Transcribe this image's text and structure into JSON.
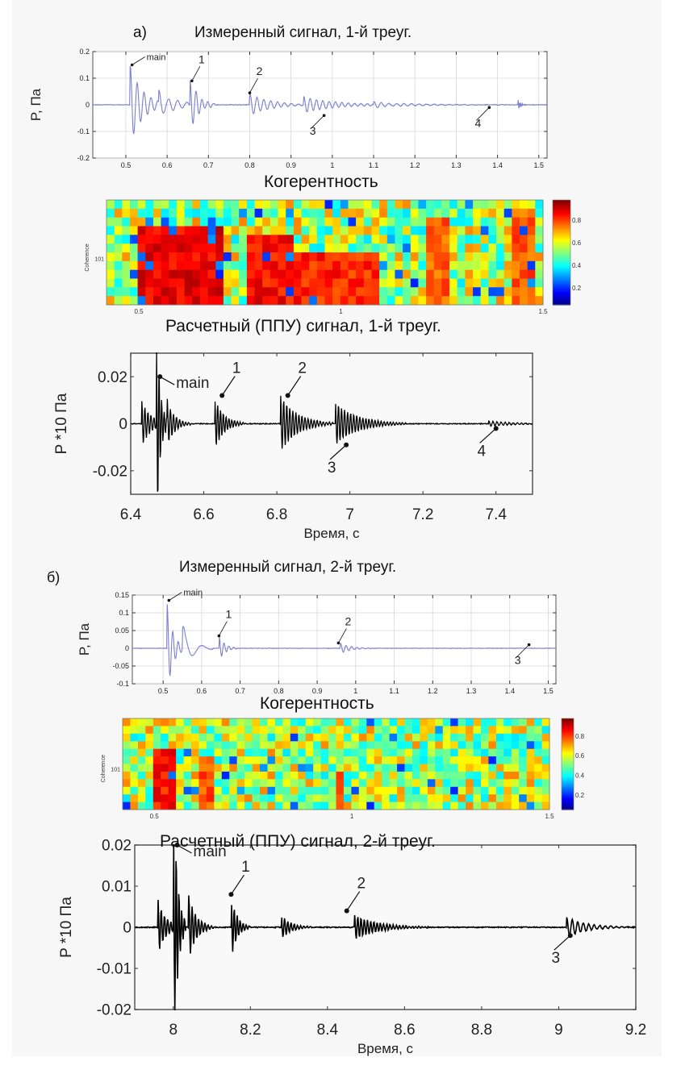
{
  "panels": {
    "a": {
      "label": "а)",
      "measured_title": "Измеренный сигнал, 1-й треуг.",
      "coherence_title": "Когерентность",
      "computed_title": "Расчетный (ППУ) сигнал, 1-й треуг."
    },
    "b": {
      "label": "б)",
      "measured_title": "Измеренный сигнал,  2-й треуг.",
      "coherence_title": "Когерентность",
      "computed_title": "Расчетный (ППУ) сигнал,  2-й треуг."
    }
  },
  "colors": {
    "measured_line": "#7b7fcf",
    "computed_line": "#000000",
    "grid": "#d8d8d8",
    "axis": "#555555",
    "background": "#f7f7f7"
  },
  "chart_data": [
    {
      "id": "a-measured",
      "type": "line",
      "title": "Измеренный сигнал, 1-й треуг.",
      "xlabel": "",
      "ylabel": "P, Па",
      "xlim": [
        0.42,
        1.52
      ],
      "ylim": [
        -0.2,
        0.2
      ],
      "xticks": [
        0.5,
        0.6,
        0.7,
        0.8,
        0.9,
        1,
        1.1,
        1.2,
        1.3,
        1.4,
        1.5
      ],
      "xtick_labels": [
        "0.5",
        "0.6",
        "0.7",
        "0.8",
        "0.9",
        "1",
        "1.1",
        "1.2",
        "1.3",
        "1.4",
        "1.5"
      ],
      "yticks": [
        -0.2,
        -0.1,
        0,
        0.1,
        0.2
      ],
      "ytick_labels": [
        "-0.2",
        "-0.1",
        "0",
        "0.1",
        "0.2"
      ],
      "grid": true,
      "series": [
        {
          "name": "measured",
          "bursts": [
            {
              "t": 0.51,
              "amp": 0.15,
              "dur": 0.06,
              "freq": 60
            },
            {
              "t": 0.58,
              "amp": 0.05,
              "dur": 0.08,
              "freq": 45
            },
            {
              "t": 0.655,
              "amp": 0.1,
              "dur": 0.04,
              "freq": 70
            },
            {
              "t": 0.8,
              "amp": 0.04,
              "dur": 0.1,
              "freq": 60
            },
            {
              "t": 0.93,
              "amp": 0.03,
              "dur": 0.15,
              "freq": 65
            },
            {
              "t": 1.1,
              "amp": 0.01,
              "dur": 0.2,
              "freq": 55
            },
            {
              "t": 1.45,
              "amp": 0.02,
              "dur": 0.012,
              "freq": 300
            }
          ]
        }
      ],
      "annotations": [
        {
          "text": "main",
          "x": 0.515,
          "y": 0.15
        },
        {
          "text": "1",
          "x": 0.66,
          "y": 0.09
        },
        {
          "text": "2",
          "x": 0.8,
          "y": 0.045
        },
        {
          "text": "3",
          "x": 0.98,
          "y": -0.04
        },
        {
          "text": "4",
          "x": 1.38,
          "y": -0.01
        }
      ]
    },
    {
      "id": "a-coherence",
      "type": "heatmap",
      "title": "Когерентность",
      "ylabel": "Coherence",
      "ytick_labels": [
        "10^1"
      ],
      "xlim": [
        0.42,
        1.5
      ],
      "xticks": [
        0.5,
        1,
        1.5
      ],
      "xtick_labels": [
        "0.5",
        "1",
        "1.5"
      ],
      "colorbar": {
        "range": [
          0.05,
          0.98
        ],
        "ticks": [
          0.2,
          0.4,
          0.6,
          0.8
        ],
        "tick_labels": [
          "0.2",
          "0.4",
          "0.6",
          "0.8"
        ],
        "colormap": "jet"
      },
      "rows": 12,
      "cols": 56,
      "high_regions": [
        {
          "x0": 0.5,
          "x1": 0.7,
          "row_from": 3,
          "level": 0.95
        },
        {
          "x0": 0.76,
          "x1": 0.88,
          "row_from": 4,
          "level": 0.93
        },
        {
          "x0": 0.88,
          "x1": 1.1,
          "row_from": 6,
          "level": 0.9
        },
        {
          "x0": 1.22,
          "x1": 1.26,
          "row_from": 2,
          "level": 0.85
        },
        {
          "x0": 1.43,
          "x1": 1.48,
          "row_from": 1,
          "level": 0.85
        }
      ],
      "seed": 7
    },
    {
      "id": "a-computed",
      "type": "line",
      "title": "Расчетный (ППУ) сигнал, 1-й треуг.",
      "xlabel": "Время, с",
      "ylabel": "P *10 Па",
      "xlim": [
        6.4,
        7.5
      ],
      "ylim": [
        -0.03,
        0.03
      ],
      "xticks": [
        6.4,
        6.6,
        6.8,
        7,
        7.2,
        7.4
      ],
      "xtick_labels": [
        "6.4",
        "6.6",
        "6.8",
        "7",
        "7.2",
        "7.4"
      ],
      "yticks": [
        -0.02,
        0,
        0.02
      ],
      "ytick_labels": [
        "-0.02",
        "0",
        "0.02"
      ],
      "grid": false,
      "series": [
        {
          "name": "computed",
          "bursts": [
            {
              "t": 6.43,
              "amp": 0.01,
              "dur": 0.05,
              "freq": 120
            },
            {
              "t": 6.47,
              "amp": 0.05,
              "dur": 0.02,
              "freq": 140
            },
            {
              "t": 6.5,
              "amp": 0.01,
              "dur": 0.04,
              "freq": 120
            },
            {
              "t": 6.63,
              "amp": 0.011,
              "dur": 0.05,
              "freq": 130
            },
            {
              "t": 6.81,
              "amp": 0.012,
              "dur": 0.09,
              "freq": 120
            },
            {
              "t": 6.96,
              "amp": 0.009,
              "dur": 0.12,
              "freq": 120
            },
            {
              "t": 7.38,
              "amp": 0.0012,
              "dur": 0.12,
              "freq": 90
            }
          ]
        }
      ],
      "annotations": [
        {
          "text": "main",
          "x": 6.48,
          "y": 0.02
        },
        {
          "text": "1",
          "x": 6.65,
          "y": 0.012
        },
        {
          "text": "2",
          "x": 6.83,
          "y": 0.012
        },
        {
          "text": "3",
          "x": 6.99,
          "y": -0.009
        },
        {
          "text": "4",
          "x": 7.4,
          "y": -0.002
        }
      ]
    },
    {
      "id": "b-measured",
      "type": "line",
      "title": "Измеренный сигнал,  2-й треуг.",
      "xlabel": "",
      "ylabel": "P, Па",
      "xlim": [
        0.42,
        1.52
      ],
      "ylim": [
        -0.1,
        0.15
      ],
      "xticks": [
        0.5,
        0.6,
        0.7,
        0.8,
        0.9,
        1,
        1.1,
        1.2,
        1.3,
        1.4,
        1.5
      ],
      "xtick_labels": [
        "0.5",
        "0.6",
        "0.7",
        "0.8",
        "0.9",
        "1",
        "1.1",
        "1.2",
        "1.3",
        "1.4",
        "1.5"
      ],
      "yticks": [
        -0.1,
        -0.05,
        0,
        0.05,
        0.1,
        0.15
      ],
      "ytick_labels": [
        "-0.1",
        "-0.05",
        "0",
        "0.05",
        "0.1",
        "0.15"
      ],
      "grid": true,
      "series": [
        {
          "name": "measured",
          "bursts": [
            {
              "t": 0.51,
              "amp": 0.13,
              "dur": 0.03,
              "freq": 70
            },
            {
              "t": 0.55,
              "amp": 0.06,
              "dur": 0.05,
              "freq": 20
            },
            {
              "t": 0.645,
              "amp": 0.035,
              "dur": 0.03,
              "freq": 80
            },
            {
              "t": 0.96,
              "amp": 0.015,
              "dur": 0.05,
              "freq": 70
            }
          ]
        }
      ],
      "annotations": [
        {
          "text": "main",
          "x": 0.515,
          "y": 0.135
        },
        {
          "text": "1",
          "x": 0.645,
          "y": 0.035
        },
        {
          "text": "2",
          "x": 0.955,
          "y": 0.015
        },
        {
          "text": "3",
          "x": 1.45,
          "y": 0.01
        }
      ]
    },
    {
      "id": "b-coherence",
      "type": "heatmap",
      "title": "Когерентность",
      "ylabel": "Coherence",
      "ytick_labels": [
        "10^1"
      ],
      "xlim": [
        0.42,
        1.5
      ],
      "xticks": [
        0.5,
        1,
        1.5
      ],
      "xtick_labels": [
        "0.5",
        "1",
        "1.5"
      ],
      "colorbar": {
        "range": [
          0.05,
          0.98
        ],
        "ticks": [
          0.2,
          0.4,
          0.6,
          0.8
        ],
        "tick_labels": [
          "0.2",
          "0.4",
          "0.6",
          "0.8"
        ],
        "colormap": "jet"
      },
      "rows": 12,
      "cols": 56,
      "high_regions": [
        {
          "x0": 0.5,
          "x1": 0.56,
          "row_from": 4,
          "level": 0.92
        },
        {
          "x0": 0.62,
          "x1": 0.66,
          "row_from": 5,
          "level": 0.85
        },
        {
          "x0": 0.96,
          "x1": 0.98,
          "row_from": 7,
          "level": 0.85
        },
        {
          "x0": 1.45,
          "x1": 1.47,
          "row_from": 6,
          "level": 0.75
        }
      ],
      "seed": 19
    },
    {
      "id": "b-computed",
      "type": "line",
      "title": "Расчетный (ППУ) сигнал,  2-й треуг.",
      "xlabel": "Время, с",
      "ylabel": "P *10 Па",
      "xlim": [
        7.9,
        9.2
      ],
      "ylim": [
        -0.02,
        0.02
      ],
      "xticks": [
        8,
        8.2,
        8.4,
        8.6,
        8.8,
        9,
        9.2
      ],
      "xtick_labels": [
        "8",
        "8.2",
        "8.4",
        "8.6",
        "8.8",
        "9",
        "9.2"
      ],
      "yticks": [
        -0.02,
        -0.01,
        0,
        0.01,
        0.02
      ],
      "ytick_labels": [
        "-0.02",
        "-0.01",
        "0",
        "0.01",
        "0.02"
      ],
      "grid": false,
      "series": [
        {
          "name": "computed",
          "bursts": [
            {
              "t": 7.96,
              "amp": 0.007,
              "dur": 0.04,
              "freq": 120
            },
            {
              "t": 8.0,
              "amp": 0.04,
              "dur": 0.02,
              "freq": 140
            },
            {
              "t": 8.04,
              "amp": 0.008,
              "dur": 0.04,
              "freq": 120
            },
            {
              "t": 8.15,
              "amp": 0.008,
              "dur": 0.03,
              "freq": 130
            },
            {
              "t": 8.28,
              "amp": 0.003,
              "dur": 0.05,
              "freq": 120
            },
            {
              "t": 8.47,
              "amp": 0.003,
              "dur": 0.12,
              "freq": 120
            },
            {
              "t": 9.02,
              "amp": 0.0025,
              "dur": 0.1,
              "freq": 70
            }
          ]
        }
      ],
      "annotations": [
        {
          "text": "main",
          "x": 8.01,
          "y": 0.02
        },
        {
          "text": "1",
          "x": 8.15,
          "y": 0.008
        },
        {
          "text": "2",
          "x": 8.45,
          "y": 0.004
        },
        {
          "text": "3",
          "x": 9.03,
          "y": -0.002
        }
      ]
    }
  ]
}
